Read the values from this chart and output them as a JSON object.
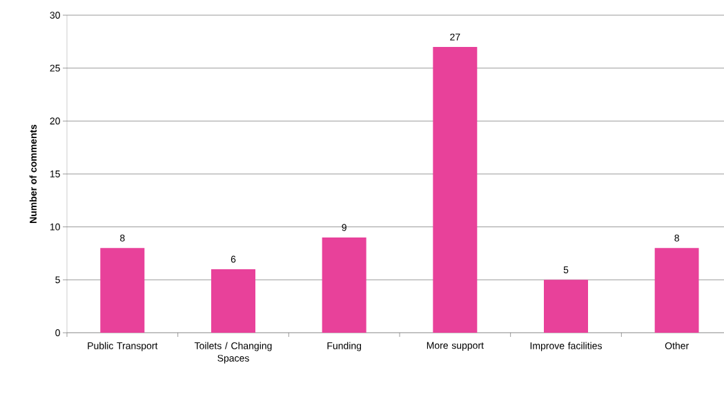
{
  "chart_data": {
    "type": "bar",
    "ylabel": "Number of comments",
    "categories": [
      "Public Transport",
      "Toilets / Changing Spaces",
      "Funding",
      "More support",
      "Improve facilities",
      "Other"
    ],
    "values": [
      8,
      6,
      9,
      27,
      5,
      8
    ],
    "color": "#e8419a",
    "ylim": [
      0,
      30
    ],
    "yticks": [
      0,
      5,
      10,
      15,
      20,
      25,
      30
    ],
    "grid": "y",
    "data_labels": true
  }
}
